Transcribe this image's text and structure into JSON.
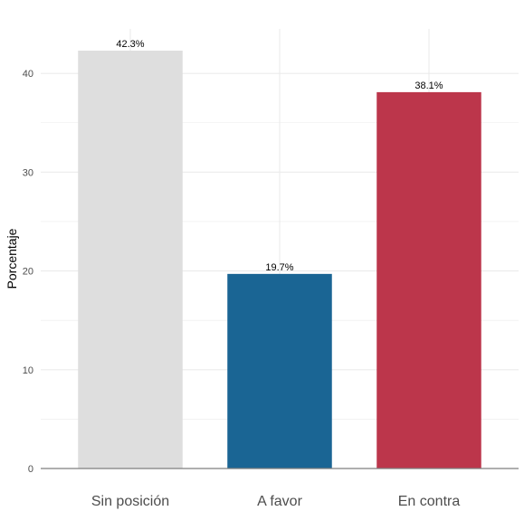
{
  "chart_data": {
    "type": "bar",
    "categories": [
      "Sin posición",
      "A favor",
      "En contra"
    ],
    "values": [
      42.3,
      19.7,
      38.1
    ],
    "data_labels": [
      "42.3%",
      "19.7%",
      "38.1%"
    ],
    "colors": [
      "#dedede",
      "#1a6594",
      "#bc364b"
    ],
    "title": "",
    "xlabel": "",
    "ylabel": "Porcentaje",
    "ylim": [
      0,
      44.5
    ],
    "yticks": [
      0,
      10,
      20,
      30,
      40
    ],
    "ytick_labels": [
      "0",
      "10",
      "20",
      "30",
      "40"
    ],
    "grid": true,
    "legend": "none"
  }
}
